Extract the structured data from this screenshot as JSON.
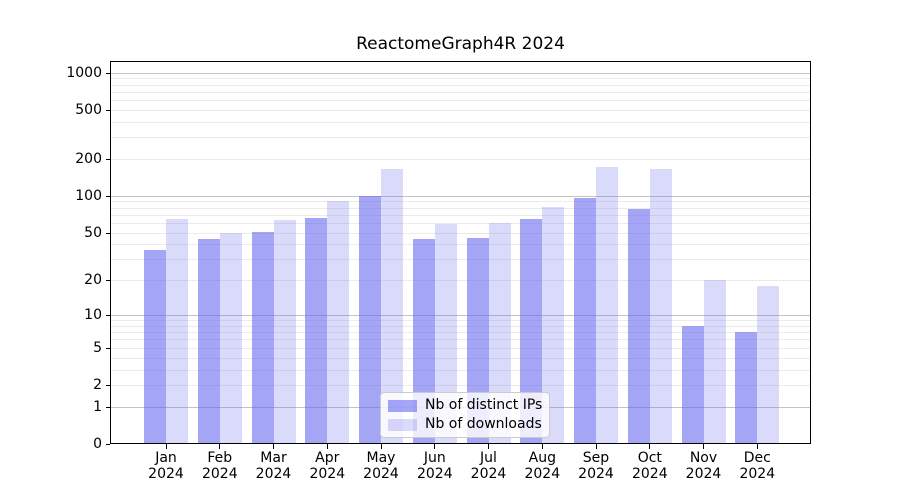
{
  "figure": {
    "background": "#ffffff",
    "axis_color": "#000000"
  },
  "chart_data": {
    "type": "bar",
    "title": "ReactomeGraph4R 2024",
    "categories": [
      "Jan 2024",
      "Feb 2024",
      "Mar 2024",
      "Apr 2024",
      "May 2024",
      "Jun 2024",
      "Jul 2024",
      "Aug 2024",
      "Sep 2024",
      "Oct 2024",
      "Nov 2024",
      "Dec 2024"
    ],
    "series": [
      {
        "name": "Nb of distinct IPs",
        "color": "#6464F094",
        "values": [
          36,
          44,
          51,
          66,
          100,
          44,
          45,
          65,
          97,
          78,
          8,
          7
        ]
      },
      {
        "name": "Nb of downloads",
        "color": "#6464F03D",
        "values": [
          65,
          50,
          64,
          91,
          166,
          59,
          60,
          81,
          172,
          167,
          20,
          18
        ]
      }
    ],
    "y_axis": {
      "scale": "log1p",
      "tick_values": [
        0,
        1,
        2,
        5,
        10,
        20,
        50,
        100,
        200,
        500,
        1000
      ],
      "tick_labels": [
        "0",
        "1",
        "2",
        "5",
        "10",
        "20",
        "50",
        "100",
        "200",
        "500",
        "1000"
      ],
      "max_value": 1000
    },
    "x_axis": {
      "tick_labels_line2": "2024"
    },
    "grid": {
      "major_values": [
        1,
        10,
        100,
        1000
      ],
      "minor_values": [
        2,
        3,
        4,
        5,
        6,
        7,
        8,
        9,
        20,
        30,
        40,
        50,
        60,
        70,
        80,
        90,
        200,
        300,
        400,
        500,
        600,
        700,
        800,
        900
      ],
      "major_color": "#c3c3c3",
      "minor_color": "#ebebeb"
    },
    "legend_position": "inside lower-center",
    "xlabel": "",
    "ylabel": ""
  }
}
